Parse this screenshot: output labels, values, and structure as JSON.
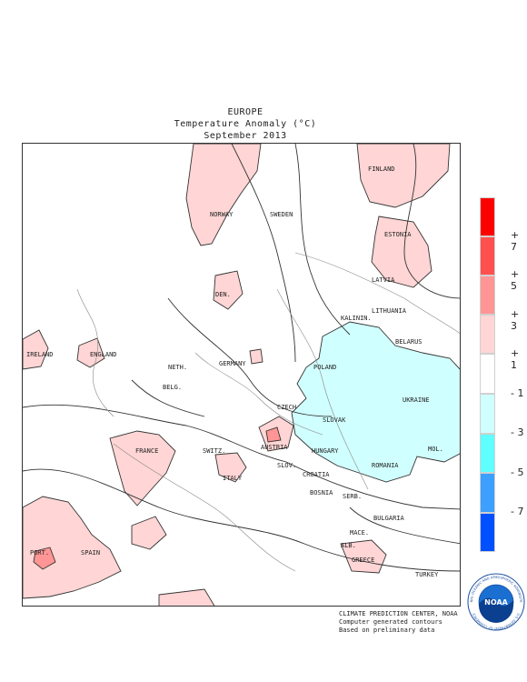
{
  "header": {
    "line1": "EUROPE",
    "line2": "Temperature Anomaly (°C)",
    "line3": "September 2013"
  },
  "countries": [
    {
      "name": "FINLAND",
      "key": "finland"
    },
    {
      "name": "NORWAY",
      "key": "norway"
    },
    {
      "name": "SWEDEN",
      "key": "sweden"
    },
    {
      "name": "ESTONIA",
      "key": "estonia"
    },
    {
      "name": "LATVIA",
      "key": "latvia"
    },
    {
      "name": "DEN.",
      "key": "den"
    },
    {
      "name": "LITHUANIA",
      "key": "lithuania"
    },
    {
      "name": "KALININ.",
      "key": "kalinin"
    },
    {
      "name": "BELARUS",
      "key": "belarus"
    },
    {
      "name": "IRELAND",
      "key": "ireland"
    },
    {
      "name": "ENGLAND",
      "key": "england"
    },
    {
      "name": "NETH.",
      "key": "neth"
    },
    {
      "name": "GERMANY",
      "key": "germany"
    },
    {
      "name": "POLAND",
      "key": "poland"
    },
    {
      "name": "BELG.",
      "key": "belg"
    },
    {
      "name": "UKRAINE",
      "key": "ukraine"
    },
    {
      "name": "CZECH",
      "key": "czech"
    },
    {
      "name": "SLOVAK",
      "key": "slovak"
    },
    {
      "name": "FRANCE",
      "key": "france"
    },
    {
      "name": "SWITZ.",
      "key": "switz"
    },
    {
      "name": "AUSTRIA",
      "key": "austria"
    },
    {
      "name": "HUNGARY",
      "key": "hungary"
    },
    {
      "name": "MOL.",
      "key": "mol"
    },
    {
      "name": "SLOV.",
      "key": "slov"
    },
    {
      "name": "CROATIA",
      "key": "croatia"
    },
    {
      "name": "ROMANIA",
      "key": "romania"
    },
    {
      "name": "ITALY",
      "key": "italy"
    },
    {
      "name": "BOSNIA",
      "key": "bosnia"
    },
    {
      "name": "SERB.",
      "key": "serb"
    },
    {
      "name": "BULGARIA",
      "key": "bulgaria"
    },
    {
      "name": "MACE.",
      "key": "mace"
    },
    {
      "name": "ALB.",
      "key": "alb"
    },
    {
      "name": "PORT.",
      "key": "port"
    },
    {
      "name": "SPAIN",
      "key": "spain"
    },
    {
      "name": "GREECE",
      "key": "greece"
    },
    {
      "name": "TURKEY",
      "key": "turkey"
    }
  ],
  "legend": {
    "colors": [
      "#ff0000",
      "#ff5050",
      "#ff9595",
      "#ffd5d5",
      "#ffffff",
      "#d0ffff",
      "#60ffff",
      "#3d9fff",
      "#0050ff"
    ],
    "labels": [
      "+ 7",
      "+ 5",
      "+ 3",
      "+ 1",
      "- 1",
      "- 3",
      "- 5",
      "- 7"
    ]
  },
  "credits": {
    "line1": "CLIMATE PREDICTION CENTER, NOAA",
    "line2": "Computer generated contours",
    "line3": "Based on preliminary data"
  },
  "logo": {
    "text": "NOAA",
    "ring_top": "NATIONAL OCEANIC AND ATMOSPHERIC ADMINISTRATION",
    "ring_bottom": "U.S. DEPARTMENT OF COMMERCE",
    "icon": "noaa-logo-icon"
  },
  "colors": {
    "warm_fill": "#ffd5d5",
    "warm_fill_strong": "#ff9595",
    "cool_fill": "#d0ffff",
    "contour": "#333333"
  }
}
